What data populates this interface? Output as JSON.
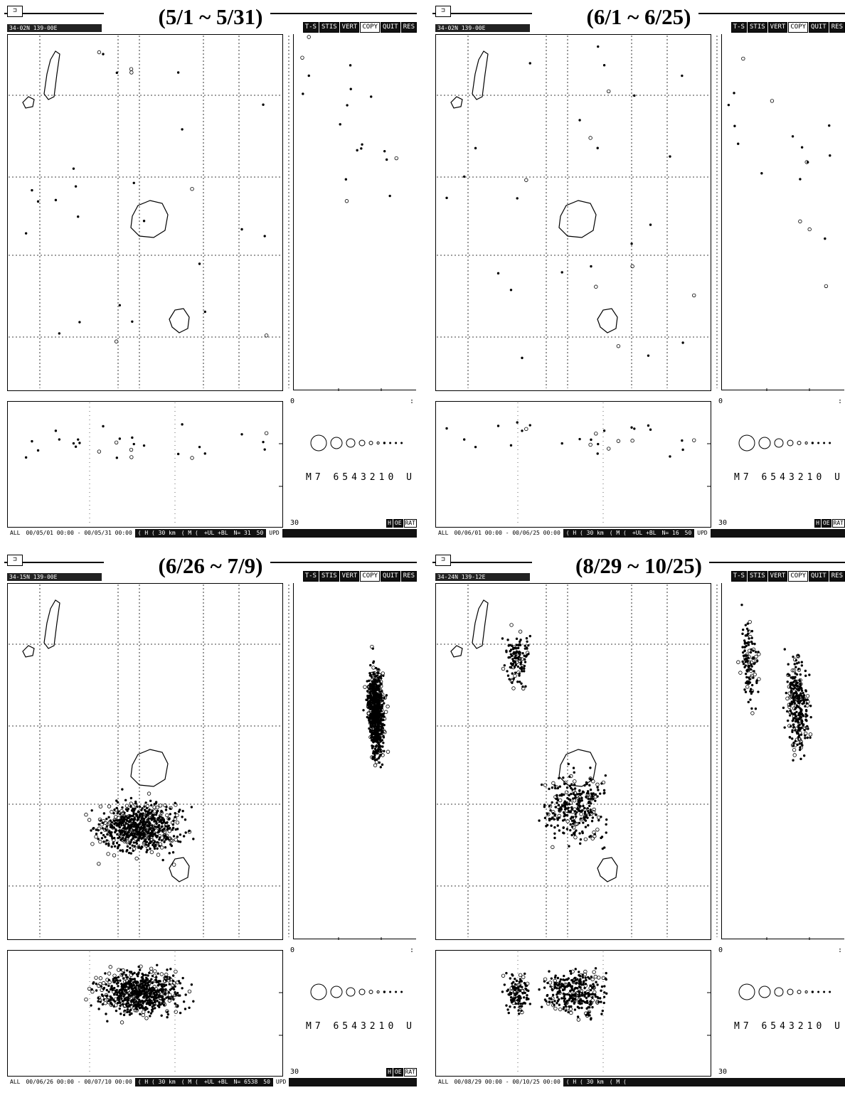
{
  "panels": [
    {
      "title": "(5/1 ~ 5/31)",
      "coord": "34-02N 139-00E",
      "menu": [
        "T-S",
        "STIS",
        "VERT",
        "COPY",
        "QUIT",
        "RES"
      ],
      "depth_top": "0",
      "depth_bottom": "30",
      "legend_magnitudes": "M7 6543210 U",
      "rat_buttons": [
        "H",
        "OE",
        "RAT"
      ],
      "upd_buttons": [
        "50",
        "UPD"
      ],
      "status": {
        "all": "ALL",
        "range": "00/05/01 00:00 - 00/05/31 00:00",
        "h": "( H ( 30 km",
        "m": "( M (",
        "flags": "+UL +BL",
        "n": "N= 31"
      },
      "density": "sparse"
    },
    {
      "title": "(6/1 ~ 6/25)",
      "coord": "34-02N 139-00E",
      "menu": [
        "T-S",
        "STIS",
        "VERT",
        "COPY",
        "QUIT",
        "RES"
      ],
      "depth_top": "0",
      "depth_bottom": "30",
      "legend_magnitudes": "M7 6543210 U",
      "rat_buttons": [
        "H",
        "OE",
        "RAT"
      ],
      "upd_buttons": [
        "50",
        "UPD"
      ],
      "status": {
        "all": "ALL",
        "range": "00/06/01 00:00 - 00/06/25 00:00",
        "h": "( H ( 30 km",
        "m": "( M (",
        "flags": "+UL +BL",
        "n": "N= 16"
      },
      "density": "sparse"
    },
    {
      "title": "(6/26 ~ 7/9)",
      "coord": "34-15N 139-00E",
      "menu": [
        "T-S",
        "STIS",
        "VERT",
        "COPY",
        "QUIT",
        "RES"
      ],
      "depth_top": "0",
      "depth_bottom": "30",
      "legend_magnitudes": "M7 6543210 U",
      "rat_buttons": [
        "H",
        "OE",
        "RAT"
      ],
      "upd_buttons": [
        "50",
        "UPD"
      ],
      "status": {
        "all": "ALL",
        "range": "00/06/26 00:00 - 00/07/10 00:00",
        "h": "( H ( 30 km",
        "m": "( M (",
        "flags": "+UL +BL",
        "n": "N= 6538"
      },
      "density": "dense"
    },
    {
      "title": "(8/29 ~ 10/25)",
      "coord": "34-24N 139-12E",
      "menu": [
        "T-S",
        "STIS",
        "VERT",
        "COPY",
        "QUIT",
        "RES"
      ],
      "depth_top": "0",
      "depth_bottom": "30",
      "legend_magnitudes": "M7 6543210 U",
      "rat_buttons": [],
      "upd_buttons": [],
      "status": {
        "all": "ALL",
        "range": "00/08/29 00:00 - 00/10/25 00:00",
        "h": "( H ( 30 km",
        "m": "( M (",
        "flags": "",
        "n": ""
      },
      "density": "medium"
    }
  ]
}
